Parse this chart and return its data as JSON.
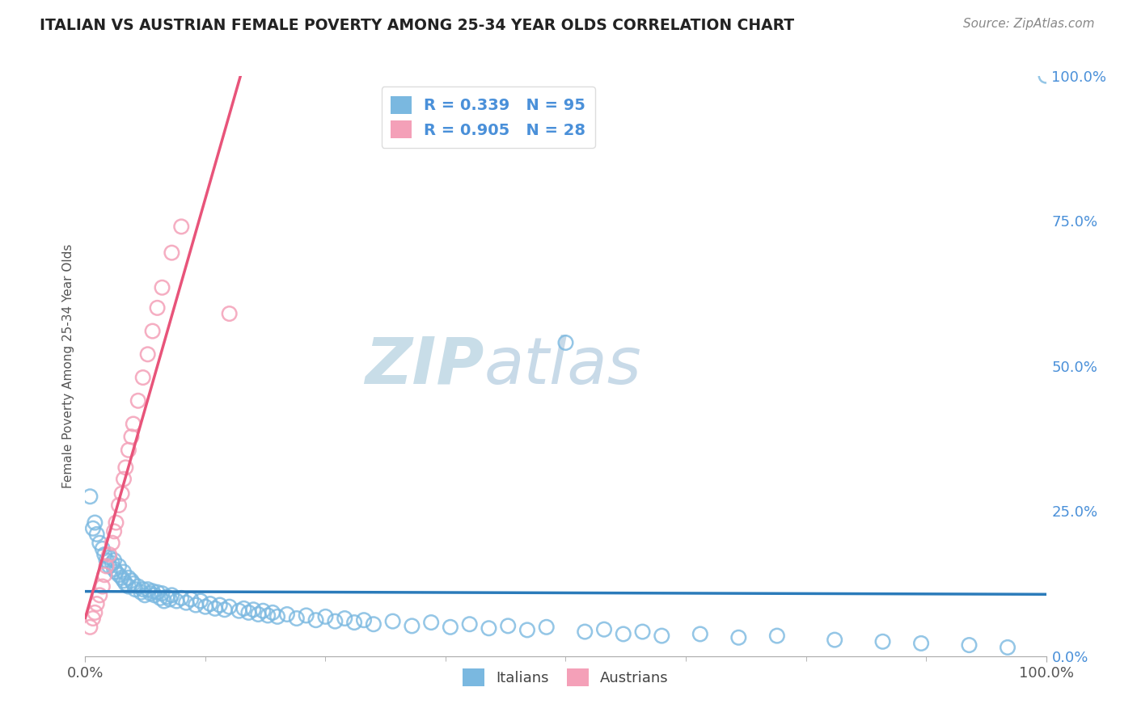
{
  "title": "ITALIAN VS AUSTRIAN FEMALE POVERTY AMONG 25-34 YEAR OLDS CORRELATION CHART",
  "source": "Source: ZipAtlas.com",
  "ylabel": "Female Poverty Among 25-34 Year Olds",
  "right_yticks": [
    0.0,
    0.25,
    0.5,
    0.75,
    1.0
  ],
  "right_yticklabels": [
    "0.0%",
    "25.0%",
    "50.0%",
    "75.0%",
    "100.0%"
  ],
  "italian_R": 0.339,
  "italian_N": 95,
  "austrian_R": 0.905,
  "austrian_N": 28,
  "italian_scatter_color": "#7ab8e0",
  "austrian_scatter_color": "#f4a0b8",
  "italian_line_color": "#2b7bba",
  "austrian_line_color": "#e8547a",
  "background_color": "#ffffff",
  "grid_color": "#bbbbbb",
  "title_color": "#222222",
  "source_color": "#888888",
  "axis_label_color": "#555555",
  "tick_label_color": "#555555",
  "right_tick_color": "#4a90d9",
  "watermark_zip_color": "#c8dde8",
  "watermark_atlas_color": "#c8dae8",
  "xlim": [
    0.0,
    1.0
  ],
  "ylim": [
    0.0,
    1.0
  ],
  "legend_border_color": "#dddddd",
  "legend_text_color": "#4a90d9",
  "bottom_legend_text_color": "#444444",
  "italian_x": [
    0.005,
    0.008,
    0.01,
    0.012,
    0.015,
    0.018,
    0.02,
    0.022,
    0.025,
    0.025,
    0.028,
    0.03,
    0.03,
    0.032,
    0.035,
    0.035,
    0.038,
    0.04,
    0.04,
    0.042,
    0.045,
    0.045,
    0.048,
    0.05,
    0.052,
    0.055,
    0.058,
    0.06,
    0.062,
    0.065,
    0.068,
    0.07,
    0.072,
    0.075,
    0.078,
    0.08,
    0.082,
    0.085,
    0.088,
    0.09,
    0.095,
    0.1,
    0.105,
    0.11,
    0.115,
    0.12,
    0.125,
    0.13,
    0.135,
    0.14,
    0.145,
    0.15,
    0.16,
    0.165,
    0.17,
    0.175,
    0.18,
    0.185,
    0.19,
    0.195,
    0.2,
    0.21,
    0.22,
    0.23,
    0.24,
    0.25,
    0.26,
    0.27,
    0.28,
    0.29,
    0.3,
    0.32,
    0.34,
    0.36,
    0.38,
    0.4,
    0.42,
    0.44,
    0.46,
    0.48,
    0.5,
    0.52,
    0.54,
    0.56,
    0.58,
    0.6,
    0.64,
    0.68,
    0.72,
    0.78,
    0.83,
    0.87,
    0.92,
    0.96,
    1.0
  ],
  "italian_y": [
    0.275,
    0.22,
    0.23,
    0.21,
    0.195,
    0.185,
    0.175,
    0.165,
    0.17,
    0.155,
    0.16,
    0.15,
    0.165,
    0.145,
    0.155,
    0.14,
    0.135,
    0.145,
    0.13,
    0.125,
    0.135,
    0.12,
    0.13,
    0.125,
    0.115,
    0.12,
    0.11,
    0.115,
    0.105,
    0.115,
    0.108,
    0.112,
    0.105,
    0.11,
    0.1,
    0.108,
    0.095,
    0.102,
    0.098,
    0.105,
    0.095,
    0.1,
    0.092,
    0.098,
    0.088,
    0.095,
    0.085,
    0.09,
    0.082,
    0.088,
    0.08,
    0.085,
    0.078,
    0.082,
    0.075,
    0.08,
    0.072,
    0.078,
    0.07,
    0.075,
    0.068,
    0.072,
    0.065,
    0.07,
    0.062,
    0.068,
    0.06,
    0.065,
    0.058,
    0.062,
    0.055,
    0.06,
    0.052,
    0.058,
    0.05,
    0.055,
    0.048,
    0.052,
    0.045,
    0.05,
    0.54,
    0.042,
    0.046,
    0.038,
    0.042,
    0.035,
    0.038,
    0.032,
    0.035,
    0.028,
    0.025,
    0.022,
    0.019,
    0.015,
    1.0
  ],
  "austrian_x": [
    0.005,
    0.008,
    0.01,
    0.012,
    0.015,
    0.018,
    0.02,
    0.022,
    0.025,
    0.028,
    0.03,
    0.032,
    0.035,
    0.038,
    0.04,
    0.042,
    0.045,
    0.048,
    0.05,
    0.055,
    0.06,
    0.065,
    0.07,
    0.075,
    0.08,
    0.09,
    0.1,
    0.15
  ],
  "austrian_y": [
    0.05,
    0.065,
    0.075,
    0.09,
    0.105,
    0.12,
    0.14,
    0.155,
    0.175,
    0.195,
    0.215,
    0.23,
    0.26,
    0.28,
    0.305,
    0.325,
    0.355,
    0.378,
    0.4,
    0.44,
    0.48,
    0.52,
    0.56,
    0.6,
    0.635,
    0.695,
    0.74,
    0.59
  ]
}
